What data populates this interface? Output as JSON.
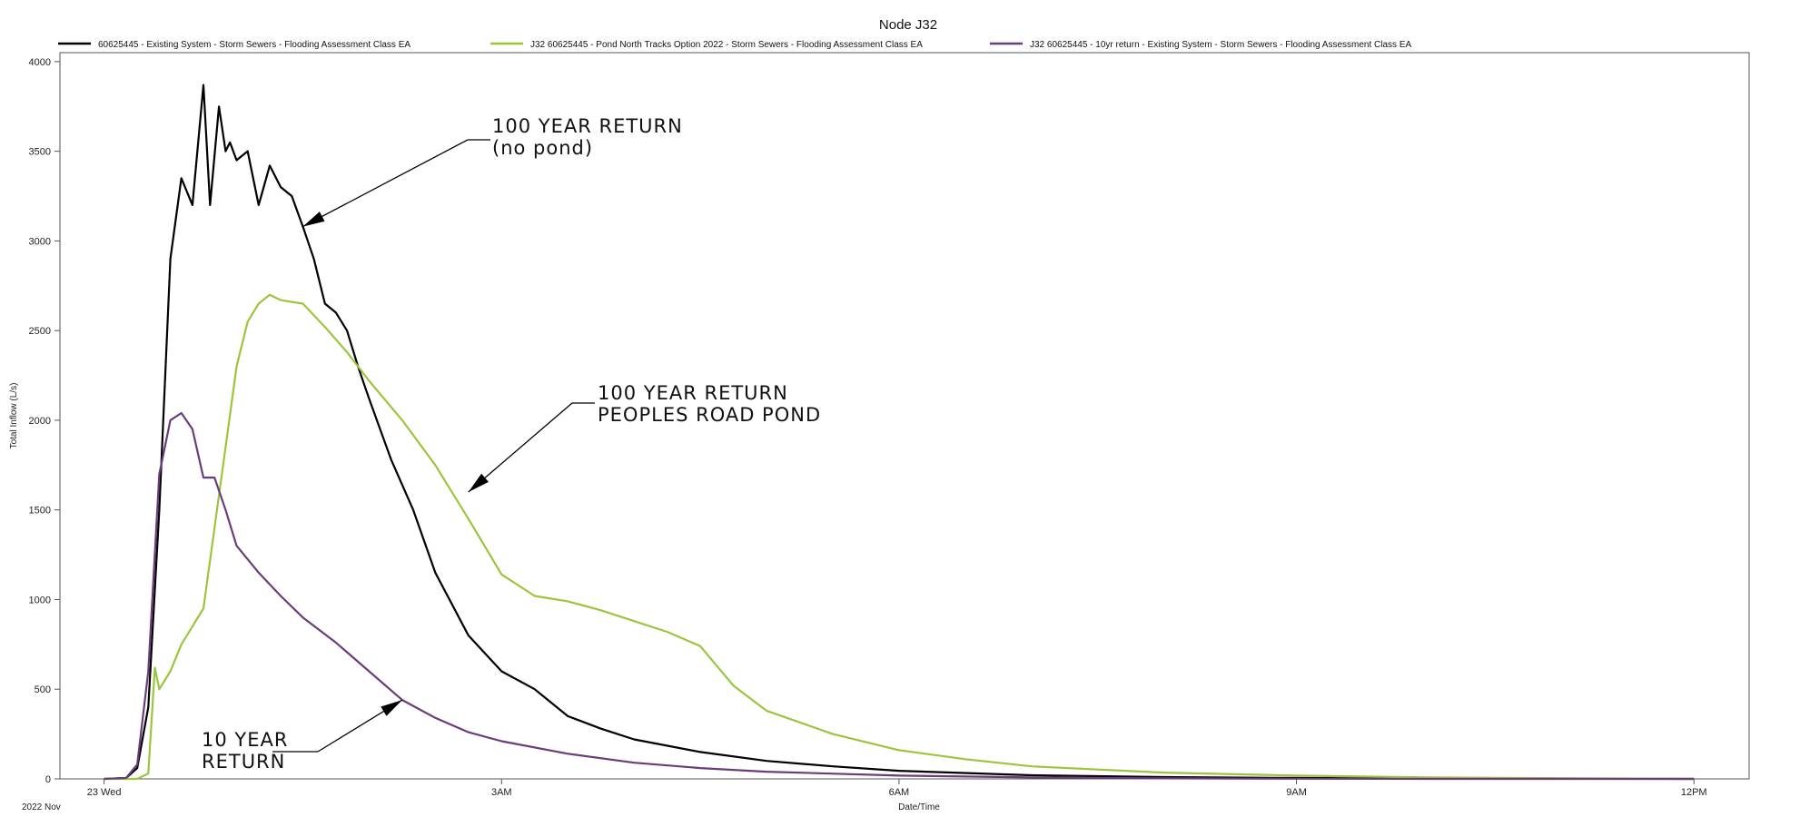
{
  "chart_data": {
    "type": "line",
    "title": "Node J32",
    "xlabel": "Date/Time",
    "ylabel": "Total Inflow (L/s)",
    "date_note": "2022 Nov",
    "x_ticks": [
      "2022-11-23T00:00",
      "2022-11-23T03:00",
      "2022-11-23T06:00",
      "2022-11-23T09:00",
      "2022-11-23T12:00"
    ],
    "x_tick_labels": [
      "23 Wed",
      "3AM",
      "6AM",
      "9AM",
      "12PM"
    ],
    "xlim": [
      "2022-11-22T23:40",
      "2022-11-23T12:25"
    ],
    "ylim": [
      0,
      4050
    ],
    "y_ticks": [
      0,
      500,
      1000,
      1500,
      2000,
      2500,
      3000,
      3500,
      4000
    ],
    "grid": false,
    "legend_position": "top",
    "series": [
      {
        "name": "60625445 - Existing System - Storm Sewers - Flooding Assessment Class EA",
        "color": "#000000",
        "x": [
          "2022-11-23T00:00",
          "2022-11-23T00:10",
          "2022-11-23T00:15",
          "2022-11-23T00:20",
          "2022-11-23T00:25",
          "2022-11-23T00:30",
          "2022-11-23T00:35",
          "2022-11-23T00:40",
          "2022-11-23T00:45",
          "2022-11-23T00:48",
          "2022-11-23T00:52",
          "2022-11-23T00:55",
          "2022-11-23T00:57",
          "2022-11-23T01:00",
          "2022-11-23T01:05",
          "2022-11-23T01:10",
          "2022-11-23T01:15",
          "2022-11-23T01:20",
          "2022-11-23T01:25",
          "2022-11-23T01:30",
          "2022-11-23T01:35",
          "2022-11-23T01:40",
          "2022-11-23T01:45",
          "2022-11-23T01:50",
          "2022-11-23T01:55",
          "2022-11-23T02:00",
          "2022-11-23T02:10",
          "2022-11-23T02:20",
          "2022-11-23T02:30",
          "2022-11-23T02:45",
          "2022-11-23T03:00",
          "2022-11-23T03:15",
          "2022-11-23T03:30",
          "2022-11-23T03:45",
          "2022-11-23T04:00",
          "2022-11-23T04:30",
          "2022-11-23T05:00",
          "2022-11-23T05:30",
          "2022-11-23T06:00",
          "2022-11-23T07:00",
          "2022-11-23T08:00",
          "2022-11-23T09:00",
          "2022-11-23T10:00",
          "2022-11-23T11:00",
          "2022-11-23T12:00"
        ],
        "values": [
          0,
          5,
          60,
          400,
          1500,
          2900,
          3350,
          3200,
          3870,
          3200,
          3750,
          3500,
          3550,
          3450,
          3500,
          3200,
          3420,
          3300,
          3250,
          3080,
          2900,
          2650,
          2600,
          2500,
          2300,
          2120,
          1780,
          1500,
          1150,
          800,
          600,
          500,
          350,
          280,
          220,
          150,
          100,
          70,
          45,
          20,
          10,
          5,
          2,
          1,
          0
        ]
      },
      {
        "name": "J32 60625445 - Pond North Tracks Option 2022 - Storm Sewers - Flooding Assessment Class EA",
        "color": "#9bc53d",
        "x": [
          "2022-11-23T00:00",
          "2022-11-23T00:15",
          "2022-11-23T00:20",
          "2022-11-23T00:23",
          "2022-11-23T00:25",
          "2022-11-23T00:30",
          "2022-11-23T00:35",
          "2022-11-23T00:40",
          "2022-11-23T00:45",
          "2022-11-23T00:50",
          "2022-11-23T00:55",
          "2022-11-23T01:00",
          "2022-11-23T01:05",
          "2022-11-23T01:10",
          "2022-11-23T01:15",
          "2022-11-23T01:20",
          "2022-11-23T01:25",
          "2022-11-23T01:30",
          "2022-11-23T01:40",
          "2022-11-23T01:50",
          "2022-11-23T02:00",
          "2022-11-23T02:15",
          "2022-11-23T02:30",
          "2022-11-23T02:45",
          "2022-11-23T03:00",
          "2022-11-23T03:15",
          "2022-11-23T03:30",
          "2022-11-23T03:45",
          "2022-11-23T04:00",
          "2022-11-23T04:15",
          "2022-11-23T04:30",
          "2022-11-23T04:45",
          "2022-11-23T05:00",
          "2022-11-23T05:30",
          "2022-11-23T06:00",
          "2022-11-23T06:30",
          "2022-11-23T07:00",
          "2022-11-23T08:00",
          "2022-11-23T09:00",
          "2022-11-23T10:00",
          "2022-11-23T11:00",
          "2022-11-23T12:00"
        ],
        "values": [
          0,
          0,
          30,
          620,
          500,
          600,
          750,
          850,
          950,
          1400,
          1850,
          2300,
          2550,
          2650,
          2700,
          2670,
          2660,
          2650,
          2520,
          2380,
          2220,
          2000,
          1750,
          1450,
          1140,
          1020,
          990,
          940,
          880,
          820,
          740,
          520,
          380,
          250,
          160,
          110,
          70,
          35,
          18,
          8,
          4,
          0
        ]
      },
      {
        "name": "J32 60625445 - 10yr return - Existing System - Storm Sewers - Flooding Assessment Class EA",
        "color": "#6a3d7a",
        "x": [
          "2022-11-23T00:00",
          "2022-11-23T00:10",
          "2022-11-23T00:15",
          "2022-11-23T00:20",
          "2022-11-23T00:25",
          "2022-11-23T00:30",
          "2022-11-23T00:35",
          "2022-11-23T00:40",
          "2022-11-23T00:45",
          "2022-11-23T00:50",
          "2022-11-23T00:55",
          "2022-11-23T01:00",
          "2022-11-23T01:10",
          "2022-11-23T01:20",
          "2022-11-23T01:30",
          "2022-11-23T01:45",
          "2022-11-23T02:00",
          "2022-11-23T02:15",
          "2022-11-23T02:30",
          "2022-11-23T02:45",
          "2022-11-23T03:00",
          "2022-11-23T03:30",
          "2022-11-23T04:00",
          "2022-11-23T04:30",
          "2022-11-23T05:00",
          "2022-11-23T06:00",
          "2022-11-23T07:00",
          "2022-11-23T08:00",
          "2022-11-23T09:00",
          "2022-11-23T10:00",
          "2022-11-23T12:00"
        ],
        "values": [
          0,
          5,
          80,
          600,
          1700,
          2000,
          2040,
          1950,
          1680,
          1680,
          1500,
          1300,
          1150,
          1020,
          900,
          760,
          600,
          440,
          340,
          260,
          210,
          140,
          90,
          60,
          40,
          18,
          8,
          3,
          1,
          0,
          0
        ]
      }
    ],
    "annotations": [
      {
        "text_lines": [
          "100 YEAR RETURN",
          "(no pond)"
        ],
        "target_series": 0,
        "target_x": "2022-11-23T01:30",
        "target_y": 3080
      },
      {
        "text_lines": [
          "100 YEAR RETURN",
          "PEOPLES ROAD POND"
        ],
        "target_series": 1,
        "target_x": "2022-11-23T02:45",
        "target_y": 1600
      },
      {
        "text_lines": [
          "10 YEAR",
          "RETURN"
        ],
        "target_series": 2,
        "target_x": "2022-11-23T02:15",
        "target_y": 440
      }
    ]
  }
}
